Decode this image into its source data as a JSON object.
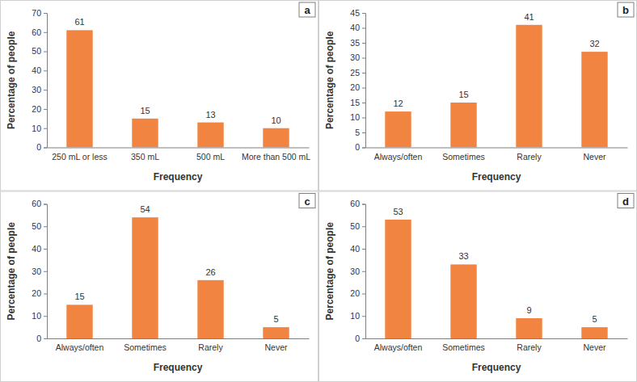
{
  "chart_data": [
    {
      "type": "bar",
      "title": "a",
      "x_label": "Frequency",
      "y_label": "Percentage of people",
      "categories": [
        "250 mL or less",
        "350 mL",
        "500 mL",
        "More than 500 mL"
      ],
      "values": [
        61,
        15,
        13,
        10
      ],
      "color": "#f28441",
      "ylim": [
        0,
        70
      ],
      "yticks": [
        0,
        10,
        20,
        30,
        40,
        50,
        60,
        70
      ],
      "grid": false,
      "data_labels": true
    },
    {
      "type": "bar",
      "title": "b",
      "x_label": "Frequency",
      "y_label": "Percentage of people",
      "categories": [
        "Always/often",
        "Sometimes",
        "Rarely",
        "Never"
      ],
      "values": [
        12,
        15,
        41,
        32
      ],
      "color": "#f28441",
      "ylim": [
        0,
        45
      ],
      "yticks": [
        0,
        5,
        10,
        15,
        20,
        25,
        30,
        35,
        40,
        45
      ],
      "grid": false,
      "data_labels": true
    },
    {
      "type": "bar",
      "title": "c",
      "x_label": "Frequency",
      "y_label": "Percentage of people",
      "categories": [
        "Always/often",
        "Sometimes",
        "Rarely",
        "Never"
      ],
      "values": [
        15,
        54,
        26,
        5
      ],
      "color": "#f28441",
      "ylim": [
        0,
        60
      ],
      "yticks": [
        0,
        10,
        20,
        30,
        40,
        50,
        60
      ],
      "grid": false,
      "data_labels": true
    },
    {
      "type": "bar",
      "title": "d",
      "x_label": "Frequency",
      "y_label": "Percentage of people",
      "categories": [
        "Always/often",
        "Sometimes",
        "Rarely",
        "Never"
      ],
      "values": [
        53,
        33,
        9,
        5
      ],
      "color": "#f28441",
      "ylim": [
        0,
        60
      ],
      "yticks": [
        0,
        10,
        20,
        30,
        40,
        50,
        60
      ],
      "grid": false,
      "data_labels": true
    }
  ]
}
